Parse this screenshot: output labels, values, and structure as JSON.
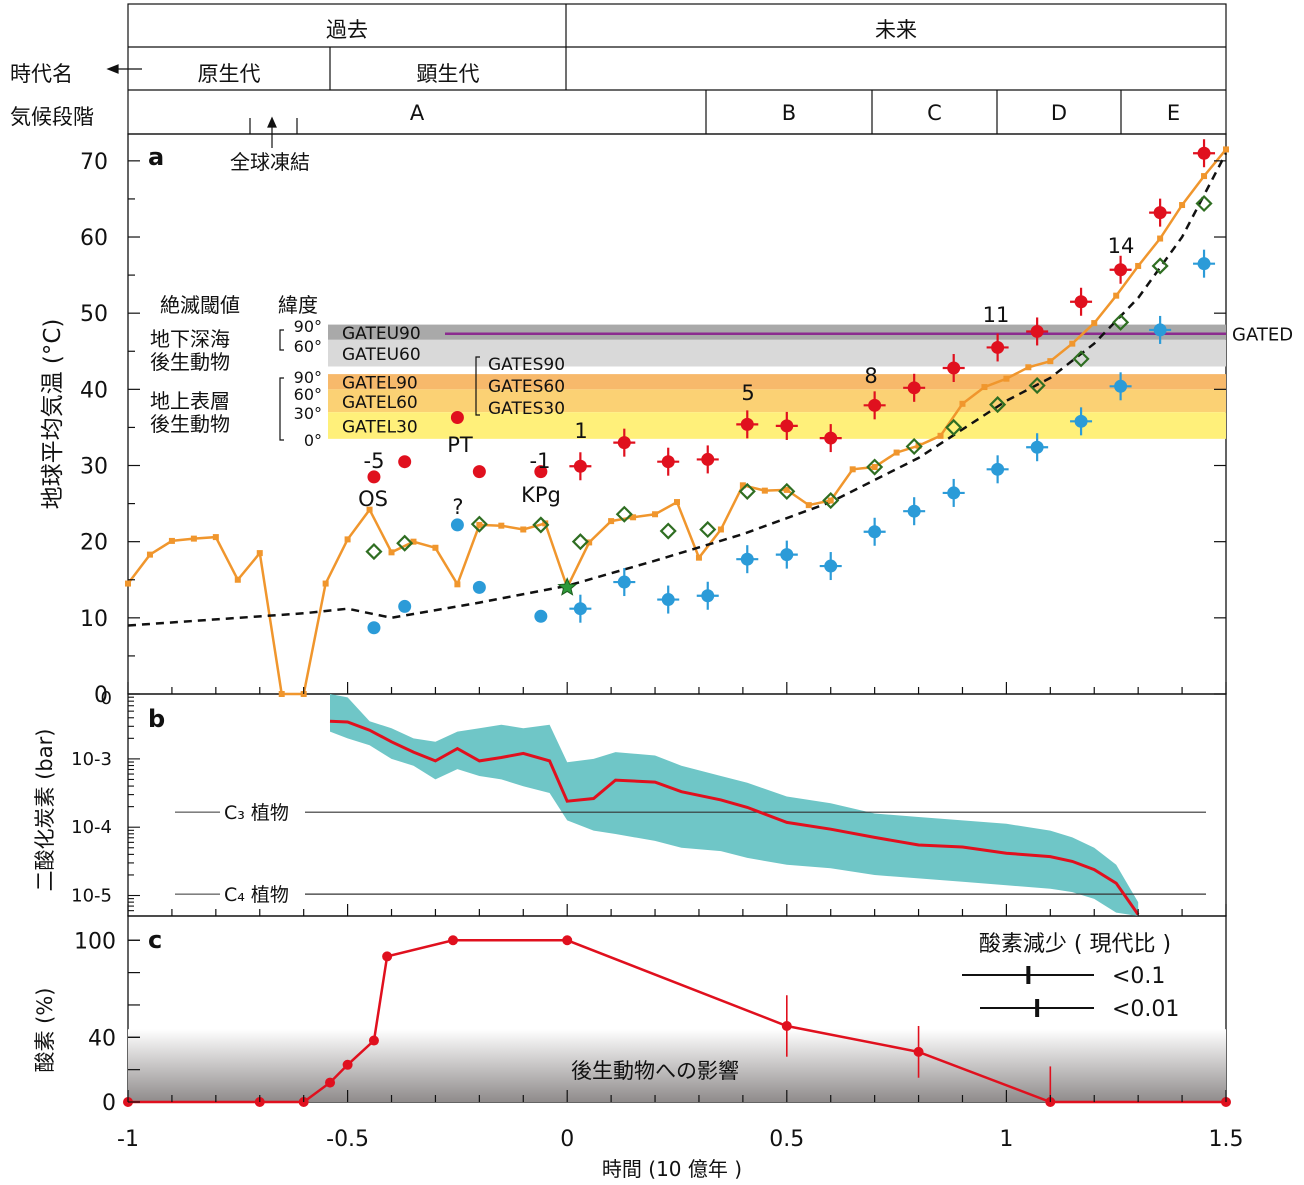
{
  "header": {
    "row1": [
      "過去",
      "未来"
    ],
    "row2_label": "時代名",
    "row2": [
      "原生代",
      "顕生代"
    ],
    "row3_label": "気候段階",
    "stages": [
      "A",
      "B",
      "C",
      "D",
      "E"
    ],
    "snowball": "全球凍結"
  },
  "colors": {
    "orange": "#f0962d",
    "red": "#e0101e",
    "blue": "#2b9bd8",
    "teal": "#6fc6c7",
    "green": "#2f6e22",
    "purple": "#8b2b8f",
    "gray_dark": "#a9a9a9",
    "gray_light": "#d9d9d9"
  },
  "panel_a": {
    "letter": "a",
    "ylabel": "地球平均気温 (°C)",
    "yticks": [
      "0",
      "10",
      "20",
      "30",
      "40",
      "50",
      "60",
      "70"
    ],
    "threshold_title": "絶滅閾値",
    "latitude_title": "緯度",
    "deep_label": [
      "地下深海",
      "後生動物"
    ],
    "surface_label": [
      "地上表層",
      "後生動物"
    ],
    "lat_ticks": [
      "90°",
      "60°",
      "90°",
      "60°",
      "30°",
      "0°"
    ],
    "bands": [
      {
        "name": "GATEU90",
        "ymin": 46.5,
        "ymax": 48.5,
        "color": "#a9a9a9"
      },
      {
        "name": "GATEU60",
        "ymin": 43.0,
        "ymax": 46.5,
        "color": "#d9d9d9"
      },
      {
        "name": "GATEL90",
        "ymin": 40.0,
        "ymax": 42.0,
        "color": "#f7b96b"
      },
      {
        "name": "GATEL60",
        "ymin": 37.0,
        "ymax": 40.0,
        "color": "#fbd174"
      },
      {
        "name": "GATEL30",
        "ymin": 33.5,
        "ymax": 37.0,
        "color": "#fff07a"
      }
    ],
    "gates_labels": [
      "GATES90",
      "GATES60",
      "GATES30"
    ],
    "gated_label": "GATED",
    "gated_value": 47.3,
    "event_labels": [
      "-5",
      "OS",
      "PT",
      "?",
      "-1",
      "KPg",
      "1",
      "5",
      "8",
      "11",
      "14"
    ]
  },
  "panel_b": {
    "letter": "b",
    "ylabel": "二酸化炭素 (bar)",
    "yticks": [
      "0",
      "10-3",
      "10-4",
      "10-5"
    ],
    "c3_label": "C₃ 植物",
    "c4_label": "C₄ 植物"
  },
  "panel_c": {
    "letter": "c",
    "ylabel": "酸素 (%)",
    "yticks": [
      "0",
      "40",
      "100"
    ],
    "impact_label": "後生動物への影響",
    "legend_title": "酸素減少 ( 現代比 )",
    "legend_items": [
      "<0.1",
      "<0.01"
    ]
  },
  "xaxis": {
    "label": "時間 (10 億年 )",
    "ticks": [
      "-1",
      "-0.5",
      "0",
      "0.5",
      "1",
      "1.5"
    ]
  },
  "chart_data": {
    "type": "line",
    "x_unit": "billion years (Gyr), negative = past",
    "xlim": [
      -1.0,
      1.5
    ],
    "panels": {
      "a": {
        "ylim": [
          0,
          73
        ],
        "series": [
          {
            "name": "geologic temperature (orange)",
            "x": [
              -1.0,
              -0.95,
              -0.9,
              -0.85,
              -0.8,
              -0.75,
              -0.7,
              -0.65,
              -0.6,
              -0.55,
              -0.5,
              -0.45,
              -0.4,
              -0.35,
              -0.3,
              -0.25,
              -0.2,
              -0.15,
              -0.1,
              -0.05,
              0.0,
              0.05,
              0.1,
              0.15,
              0.2,
              0.25,
              0.3,
              0.35,
              0.4,
              0.45,
              0.5,
              0.55,
              0.6,
              0.65,
              0.7,
              0.75,
              0.8,
              0.85,
              0.9,
              0.95,
              1.0,
              1.05,
              1.1,
              1.15,
              1.2,
              1.25,
              1.3,
              1.35,
              1.4,
              1.45,
              1.5
            ],
            "y": [
              14.5,
              18.3,
              20.1,
              20.4,
              20.6,
              15.0,
              18.5,
              0,
              0,
              14.5,
              20.3,
              24.2,
              18.6,
              20.0,
              19.2,
              14.4,
              22.2,
              22.1,
              21.6,
              22.4,
              14.0,
              19.9,
              22.7,
              23.2,
              23.6,
              25.2,
              17.9,
              21.6,
              27.4,
              26.7,
              26.8,
              24.8,
              25.4,
              29.5,
              29.8,
              31.7,
              32.6,
              33.9,
              38.1,
              40.3,
              41.4,
              42.9,
              43.7,
              46.0,
              48.7,
              52.3,
              56.2,
              59.8,
              64.2,
              68.0,
              71.5
            ]
          },
          {
            "name": "model mean (dashed)",
            "x": [
              -1.0,
              -0.8,
              -0.6,
              -0.5,
              -0.4,
              -0.2,
              0.0,
              0.2,
              0.4,
              0.6,
              0.8,
              1.0,
              1.1,
              1.2,
              1.3,
              1.4,
              1.5
            ],
            "y": [
              9.0,
              9.8,
              10.6,
              11.2,
              10.0,
              12.0,
              14.2,
              17.5,
              21.0,
              25.2,
              31.0,
              38.5,
              41.5,
              46.0,
              52.0,
              60.0,
              71.0
            ]
          },
          {
            "name": "geologic max (red dots)",
            "x": [
              -0.44,
              -0.37,
              -0.25,
              -0.2,
              -0.06
            ],
            "y": [
              28.5,
              30.5,
              36.3,
              29.2,
              29.2
            ]
          },
          {
            "name": "geologic min (blue dots)",
            "x": [
              -0.44,
              -0.37,
              -0.25,
              -0.2,
              -0.06
            ],
            "y": [
              8.7,
              11.5,
              22.2,
              14.0,
              10.2
            ]
          },
          {
            "name": "future max (red crosses)",
            "x": [
              0.03,
              0.13,
              0.23,
              0.32,
              0.41,
              0.5,
              0.6,
              0.7,
              0.79,
              0.88,
              0.98,
              1.07,
              1.17,
              1.26,
              1.35,
              1.45
            ],
            "y": [
              29.9,
              33.0,
              30.5,
              30.8,
              35.4,
              35.2,
              33.6,
              37.9,
              40.2,
              42.8,
              45.5,
              47.6,
              51.5,
              55.7,
              63.2,
              71.0
            ]
          },
          {
            "name": "future min (blue crosses)",
            "x": [
              0.03,
              0.13,
              0.23,
              0.32,
              0.41,
              0.5,
              0.6,
              0.7,
              0.79,
              0.88,
              0.98,
              1.07,
              1.17,
              1.26,
              1.35,
              1.45
            ],
            "y": [
              11.2,
              14.7,
              12.4,
              12.9,
              17.7,
              18.3,
              16.8,
              21.3,
              24.0,
              26.4,
              29.5,
              32.4,
              35.8,
              40.4,
              47.8,
              56.5
            ]
          },
          {
            "name": "diamonds (green)",
            "x": [
              -0.44,
              -0.37,
              -0.2,
              -0.06,
              0.03,
              0.13,
              0.23,
              0.32,
              0.41,
              0.5,
              0.6,
              0.7,
              0.79,
              0.88,
              0.98,
              1.07,
              1.17,
              1.26,
              1.35,
              1.45
            ],
            "y": [
              18.7,
              19.8,
              22.3,
              22.2,
              20.0,
              23.6,
              21.4,
              21.6,
              26.6,
              26.6,
              25.4,
              29.8,
              32.5,
              35.0,
              38.0,
              40.5,
              44.0,
              48.8,
              56.2,
              64.4
            ]
          }
        ]
      },
      "b": {
        "ylim_log10": [
          -5.3,
          -2.05
        ],
        "c3_level_log10": -3.78,
        "c4_level_log10": -4.98,
        "series": [
          {
            "name": "CO2 median (red)",
            "x": [
              -0.54,
              -0.5,
              -0.45,
              -0.4,
              -0.35,
              -0.3,
              -0.25,
              -0.2,
              -0.15,
              -0.1,
              -0.04,
              0.0,
              0.06,
              0.11,
              0.2,
              0.26,
              0.35,
              0.41,
              0.5,
              0.6,
              0.7,
              0.8,
              0.9,
              1.0,
              1.1,
              1.15,
              1.2,
              1.25,
              1.3
            ],
            "y_log10": [
              -2.45,
              -2.46,
              -2.58,
              -2.75,
              -2.9,
              -3.03,
              -2.85,
              -3.03,
              -2.98,
              -2.92,
              -3.03,
              -3.62,
              -3.58,
              -3.31,
              -3.34,
              -3.48,
              -3.6,
              -3.71,
              -3.93,
              -4.03,
              -4.15,
              -4.26,
              -4.29,
              -4.38,
              -4.43,
              -4.5,
              -4.62,
              -4.82,
              -5.28
            ]
          }
        ],
        "band_upper_log10": [
          -2.0,
          -2.1,
          -2.45,
          -2.55,
          -2.7,
          -2.75,
          -2.6,
          -2.55,
          -2.5,
          -2.55,
          -2.5,
          -3.05,
          -3.0,
          -2.9,
          -2.95,
          -3.1,
          -3.25,
          -3.35,
          -3.55,
          -3.65,
          -3.8,
          -3.85,
          -3.9,
          -3.95,
          -4.05,
          -4.15,
          -4.3,
          -4.55,
          -5.1
        ],
        "band_lower_log10": [
          -2.6,
          -2.7,
          -2.8,
          -3.0,
          -3.1,
          -3.3,
          -3.15,
          -3.25,
          -3.3,
          -3.4,
          -3.5,
          -3.9,
          -4.05,
          -4.1,
          -4.2,
          -4.3,
          -4.35,
          -4.45,
          -4.55,
          -4.6,
          -4.7,
          -4.75,
          -4.8,
          -4.85,
          -4.9,
          -4.95,
          -5.05,
          -5.25,
          -5.4
        ]
      },
      "c": {
        "ylim": [
          0,
          115
        ],
        "series": [
          {
            "name": "oxygen (red)",
            "x": [
              -1.0,
              -0.7,
              -0.6,
              -0.54,
              -0.5,
              -0.44,
              -0.41,
              -0.26,
              0.0,
              0.5,
              0.8,
              1.1,
              1.5
            ],
            "y": [
              0,
              0,
              0,
              12,
              23,
              38,
              90,
              100,
              100,
              47,
              31,
              0,
              0
            ],
            "err": [
              0,
              0,
              0,
              0,
              0,
              0,
              0,
              0,
              0,
              19,
              16,
              22,
              0
            ]
          }
        ],
        "legend_errorbars": [
          {
            "label": "<0.1",
            "x": 1.05
          },
          {
            "label": "<0.01",
            "x": 1.07
          }
        ]
      }
    }
  }
}
